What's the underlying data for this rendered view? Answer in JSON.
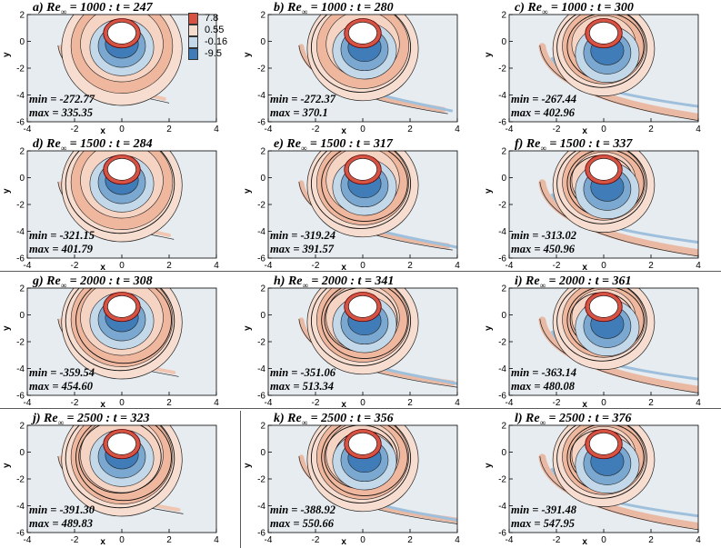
{
  "chart_data": {
    "type": "contour-grid",
    "variable": "vorticity",
    "xlabel": "x",
    "ylabel": "y",
    "xlim": [
      -4,
      4
    ],
    "ylim": [
      -6,
      2
    ],
    "xticks": [
      -4,
      -2,
      0,
      2,
      4
    ],
    "yticks": [
      2,
      0,
      -2,
      -4,
      -6
    ],
    "legend": {
      "levels": [
        "7.8",
        "0.55",
        "-0.16",
        "-9.5"
      ],
      "colors": [
        "#d65242",
        "#f4dccf",
        "#c3d9ea",
        "#3f7cb8"
      ]
    },
    "panels": [
      {
        "label": "a) Re",
        "sub": "∞",
        "rest": " = 1000 : t = 247",
        "min": "min = -272.77",
        "max": "max = 335.35",
        "Re": 1000,
        "t": 247
      },
      {
        "label": "b) Re",
        "sub": "∞",
        "rest": " = 1000 : t = 280",
        "min": "min = -272.37",
        "max": "max = 370.1",
        "Re": 1000,
        "t": 280
      },
      {
        "label": "c) Re",
        "sub": "∞",
        "rest": " = 1000 : t = 300",
        "min": "min = -267.44",
        "max": "max = 402.96",
        "Re": 1000,
        "t": 300
      },
      {
        "label": "d) Re",
        "sub": "∞",
        "rest": " = 1500 : t = 284",
        "min": "min = -321.15",
        "max": "max = 401.79",
        "Re": 1500,
        "t": 284
      },
      {
        "label": "e) Re",
        "sub": "∞",
        "rest": " = 1500 : t = 317",
        "min": "min = -319.24",
        "max": "max = 391.57",
        "Re": 1500,
        "t": 317
      },
      {
        "label": "f) Re",
        "sub": "∞",
        "rest": " = 1500 : t = 337",
        "min": "min = -313.02",
        "max": "max = 450.96",
        "Re": 1500,
        "t": 337
      },
      {
        "label": "g) Re",
        "sub": "∞",
        "rest": " = 2000 : t = 308",
        "min": "min = -359.54",
        "max": "max = 454.60",
        "Re": 2000,
        "t": 308
      },
      {
        "label": "h) Re",
        "sub": "∞",
        "rest": " = 2000 : t = 341",
        "min": "min = -351.06",
        "max": "max = 513.34",
        "Re": 2000,
        "t": 341
      },
      {
        "label": "i) Re",
        "sub": "∞",
        "rest": " = 2000 : t = 361",
        "min": "min = -363.14",
        "max": "max = 480.08",
        "Re": 2000,
        "t": 361
      },
      {
        "label": "j) Re",
        "sub": "∞",
        "rest": " = 2500 : t = 323",
        "min": "min = -391.30",
        "max": "max = 489.83",
        "Re": 2500,
        "t": 323
      },
      {
        "label": "k) Re",
        "sub": "∞",
        "rest": " = 2500 : t = 356",
        "min": "min = -388.92",
        "max": "max = 550.66",
        "Re": 2500,
        "t": 356
      },
      {
        "label": "l) Re",
        "sub": "∞",
        "rest": " = 2500 : t = 376",
        "min": "min = -391.48",
        "max": "max = 547.95",
        "Re": 2500,
        "t": 376
      }
    ]
  }
}
